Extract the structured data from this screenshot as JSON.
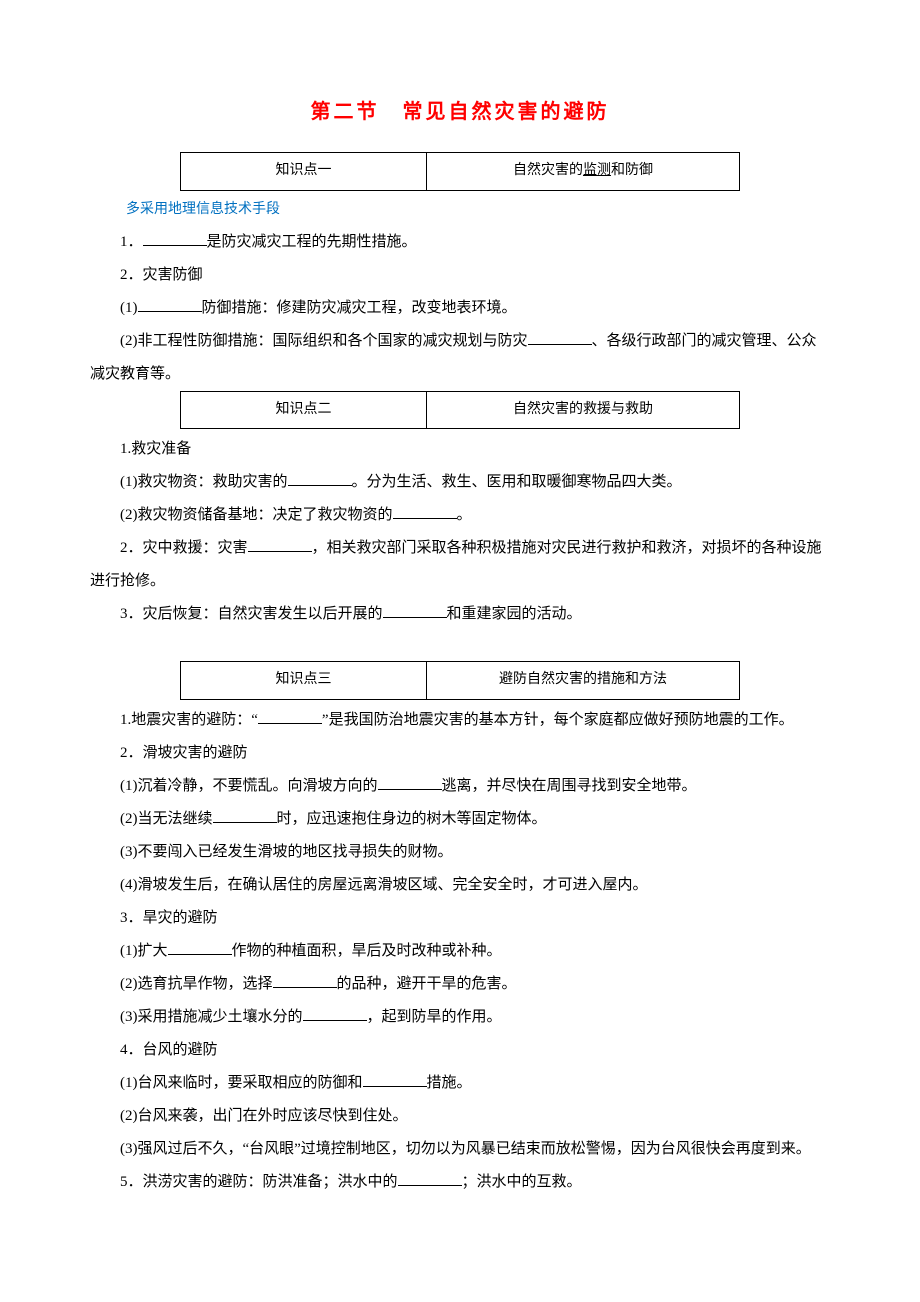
{
  "title": "第二节　常见自然灾害的避防",
  "tables": {
    "k1": {
      "left": "知识点一",
      "right_prefix": "自然灾害的",
      "right_u": "监测",
      "right_suffix": "和防御"
    },
    "k2": {
      "left": "知识点二",
      "right": "自然灾害的救援与救助"
    },
    "k3": {
      "left": "知识点三",
      "right": "避防自然灾害的措施和方法"
    }
  },
  "subtext": "多采用地理信息技术手段",
  "s1": {
    "l1a": "1．",
    "l1b": "是防灾减灾工程的先期性措施。",
    "l2": "2．灾害防御",
    "l3a": "(1)",
    "l3b": "防御措施：修建防灾减灾工程，改变地表环境。",
    "l4a": "(2)非工程性防御措施：国际组织和各个国家的减灾规划与防灾",
    "l4b": "、各级行政部门的减灾管理、公众减灾教育等。"
  },
  "s2": {
    "l1": "1.救灾准备",
    "l2a": "(1)救灾物资：救助灾害的",
    "l2b": "。分为生活、救生、医用和取暖御寒物品四大类。",
    "l3a": "(2)救灾物资储备基地：决定了救灾物资的",
    "l3b": "。",
    "l4a": "2．灾中救援：灾害",
    "l4b": "，相关救灾部门采取各种积极措施对灾民进行救护和救济，对损坏的各种设施进行抢修。",
    "l5a": "3．灾后恢复：自然灾害发生以后开展的",
    "l5b": "和重建家园的活动。"
  },
  "s3": {
    "l1a": "1.地震灾害的避防：“",
    "l1b": "”是我国防治地震灾害的基本方针，每个家庭都应做好预防地震的工作。",
    "l2": "2．滑坡灾害的避防",
    "l3a": "(1)沉着冷静，不要慌乱。向滑坡方向的",
    "l3b": "逃离，并尽快在周围寻找到安全地带。",
    "l4a": "(2)当无法继续",
    "l4b": "时，应迅速抱住身边的树木等固定物体。",
    "l5": "(3)不要闯入已经发生滑坡的地区找寻损失的财物。",
    "l6": "(4)滑坡发生后，在确认居住的房屋远离滑坡区域、完全安全时，才可进入屋内。",
    "l7": "3．旱灾的避防",
    "l8a": "(1)扩大",
    "l8b": "作物的种植面积，旱后及时改种或补种。",
    "l9a": "(2)选育抗旱作物，选择",
    "l9b": "的品种，避开干旱的危害。",
    "l10a": "(3)采用措施减少土壤水分的",
    "l10b": "，起到防旱的作用。",
    "l11": "4．台风的避防",
    "l12a": "(1)台风来临时，要采取相应的防御和",
    "l12b": "措施。",
    "l13": "(2)台风来袭，出门在外时应该尽快到住处。",
    "l14": "(3)强风过后不久，“台风眼”过境控制地区，切勿以为风暴已结束而放松警惕，因为台风很快会再度到来。",
    "l15a": "5．洪涝灾害的避防：防洪准备；洪水中的",
    "l15b": "；洪水中的互救。"
  }
}
